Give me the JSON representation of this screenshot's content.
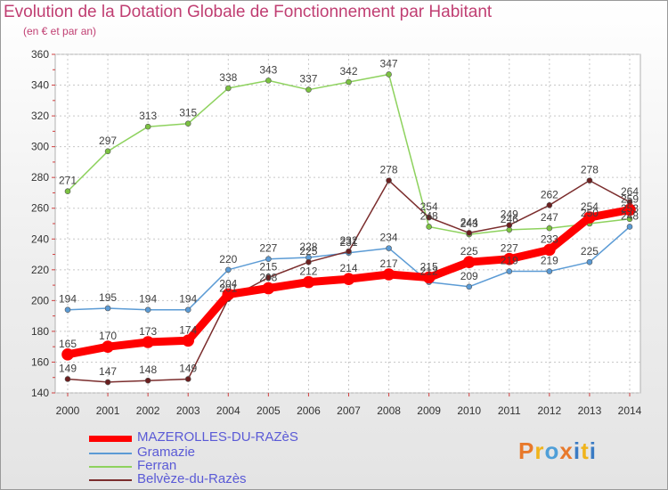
{
  "header": {
    "title": "Evolution de la Dotation Globale de Fonctionnement par Habitant",
    "subtitle": "(en € et par an)"
  },
  "logo": {
    "text": "Proxiti",
    "colors": [
      "#e8792b",
      "#f0b41c",
      "#4f9fd8",
      "#e8792b",
      "#3a7bc4",
      "#f0b41c",
      "#3a7bc4"
    ]
  },
  "chart_data": {
    "type": "line",
    "title": "Evolution de la Dotation Globale de Fonctionnement par Habitant",
    "subtitle": "(en € et par an)",
    "xlabel": "",
    "ylabel": "",
    "x": [
      "2000",
      "2001",
      "2002",
      "2003",
      "2004",
      "2005",
      "2006",
      "2007",
      "2008",
      "2009",
      "2010",
      "2011",
      "2012",
      "2013",
      "2014"
    ],
    "ylim": [
      140,
      360
    ],
    "yticks": [
      "140",
      "160",
      "180",
      "200",
      "220",
      "240",
      "260",
      "280",
      "300",
      "320",
      "340",
      "360"
    ],
    "grid": true,
    "legend_position": "bottom-left",
    "series": [
      {
        "name": "Gramazie",
        "color": "#5b9bd5",
        "marker": "#5b9bd5",
        "values": [
          194,
          195,
          194,
          194,
          220,
          227,
          228,
          231,
          234,
          212,
          209,
          219,
          219,
          225,
          248
        ]
      },
      {
        "name": "Ferran",
        "color": "#8ed25e",
        "marker": "#7cc242",
        "values": [
          271,
          297,
          313,
          315,
          338,
          343,
          337,
          342,
          347,
          248,
          243,
          246,
          247,
          250,
          253
        ]
      },
      {
        "name": "Belvèze-du-Razès",
        "color": "#7b2d2d",
        "marker": "#6b1f1f",
        "values": [
          149,
          147,
          148,
          149,
          201,
          215,
          225,
          232,
          278,
          254,
          244,
          249,
          262,
          278,
          264
        ]
      },
      {
        "name": "MAZEROLLES-DU-RAZèS",
        "color": "#ff0000",
        "marker": "#ff0000",
        "values": [
          165,
          170,
          173,
          174,
          204,
          208,
          212,
          214,
          217,
          215,
          225,
          227,
          233,
          254,
          259
        ]
      }
    ],
    "legend": [
      {
        "name": "MAZEROLLES-DU-RAZèS",
        "color": "#ff0000"
      },
      {
        "name": "Gramazie",
        "color": "#5b9bd5"
      },
      {
        "name": "Ferran",
        "color": "#8ed25e"
      },
      {
        "name": "Belvèze-du-Razès",
        "color": "#7b2d2d"
      }
    ],
    "legend_text_color": "#5a5ad6"
  }
}
